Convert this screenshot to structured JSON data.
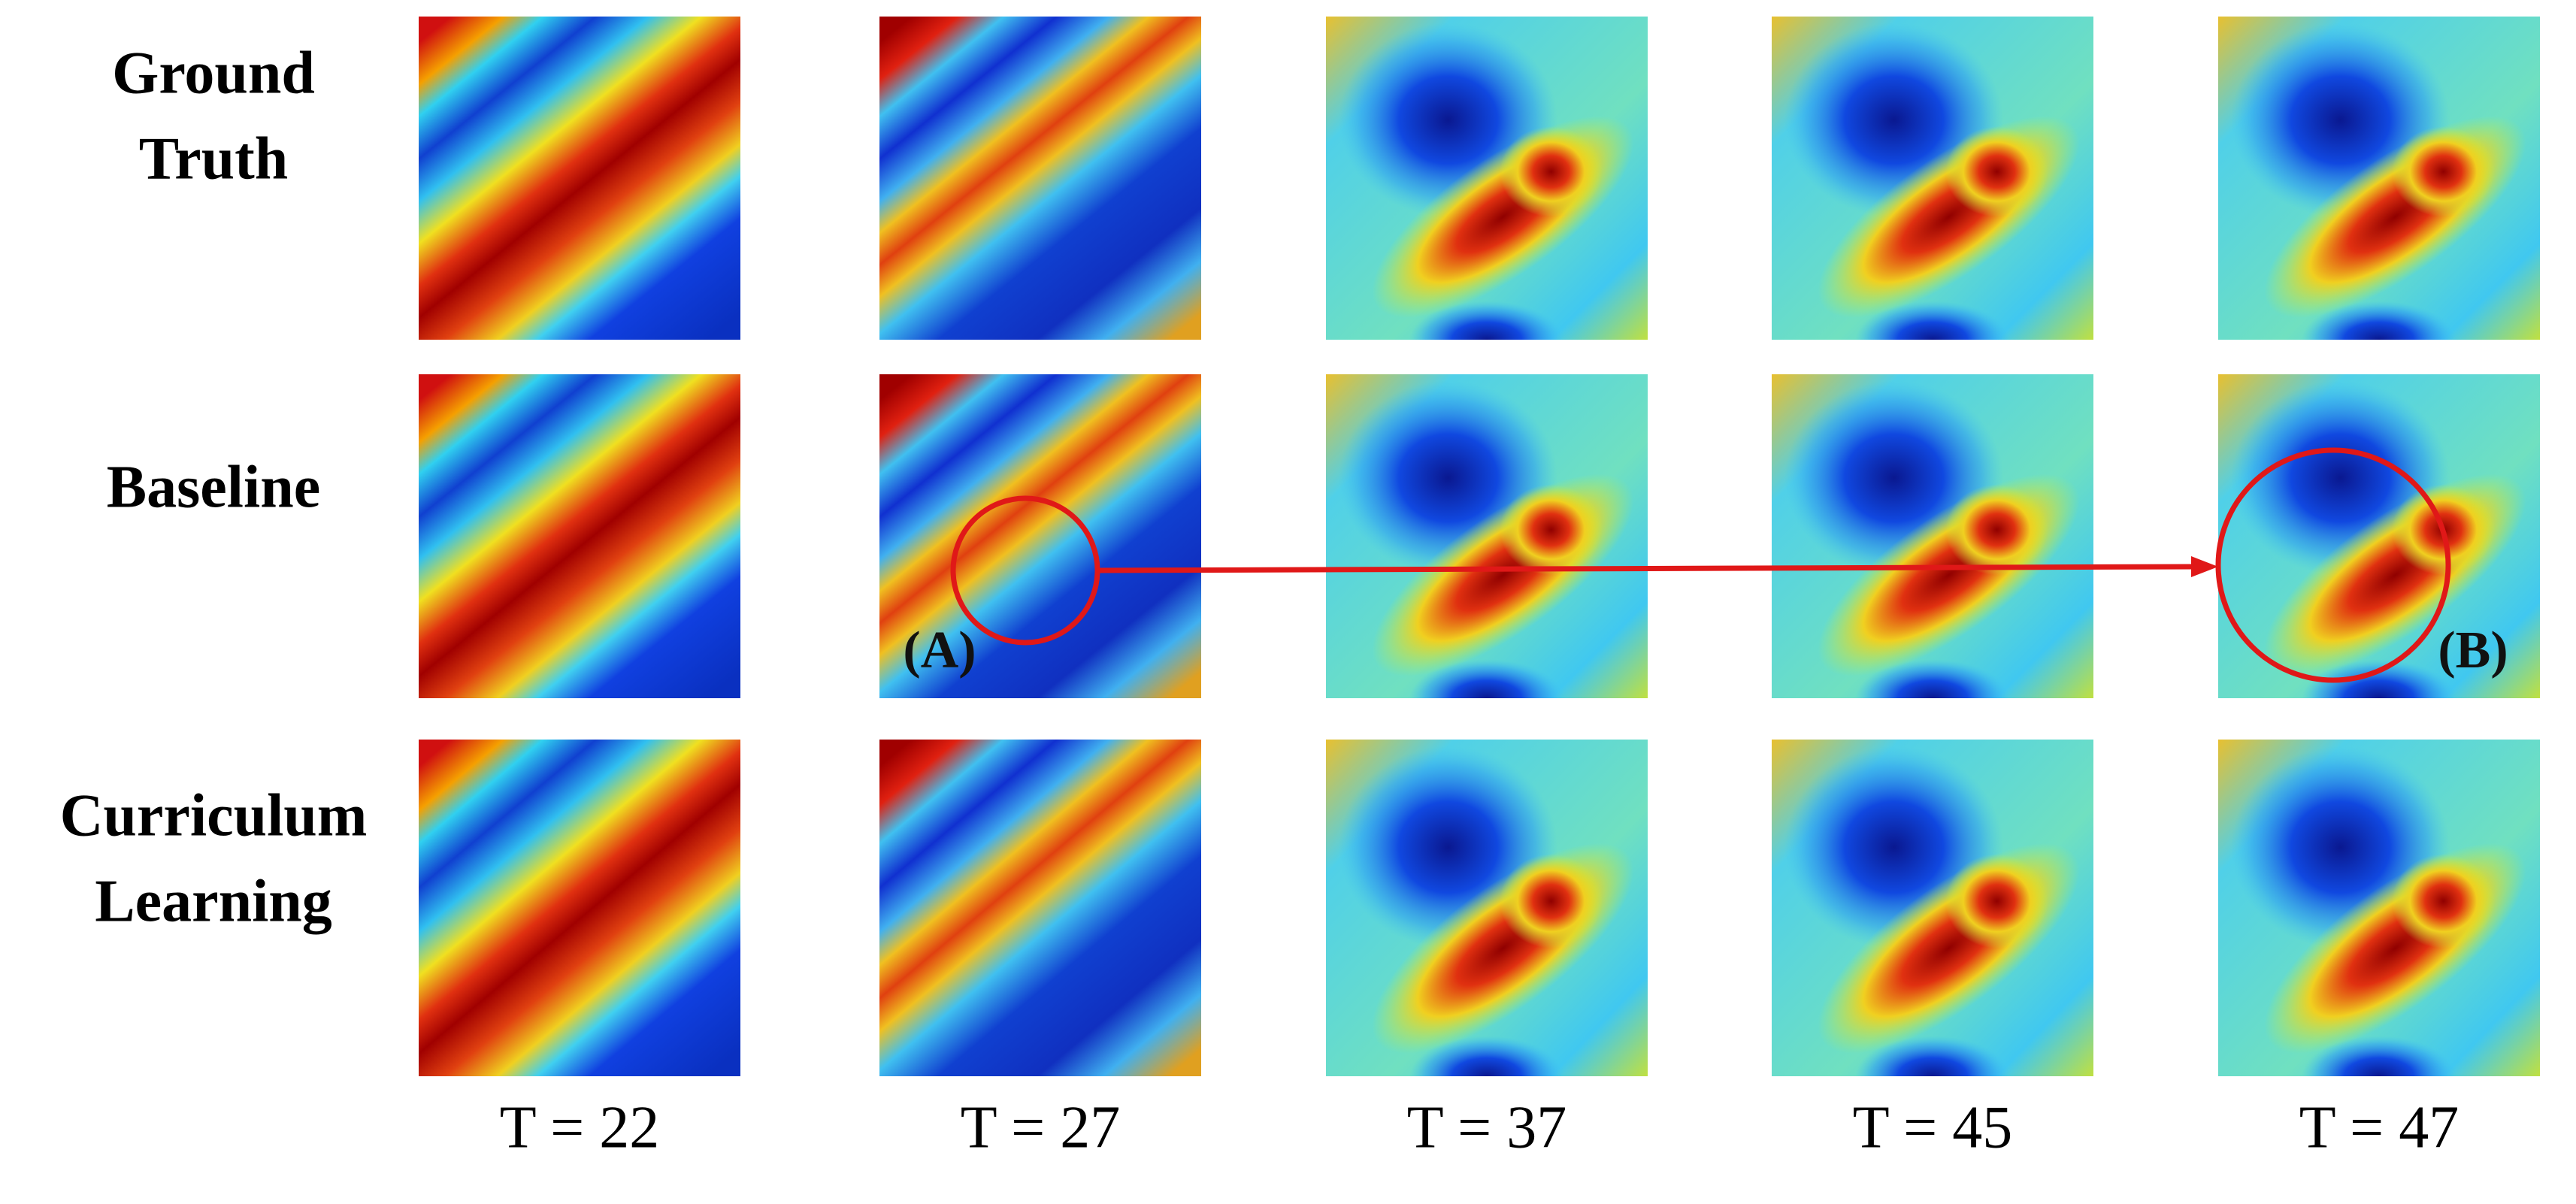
{
  "row_labels": [
    [
      "Ground",
      "Truth"
    ],
    [
      "Baseline"
    ],
    [
      "Curriculum",
      "Learning"
    ]
  ],
  "column_labels": [
    "T = 22",
    "T = 27",
    "T = 37",
    "T = 45",
    "T = 47"
  ],
  "annotations": {
    "a": "(A)",
    "b": "(B)"
  }
}
